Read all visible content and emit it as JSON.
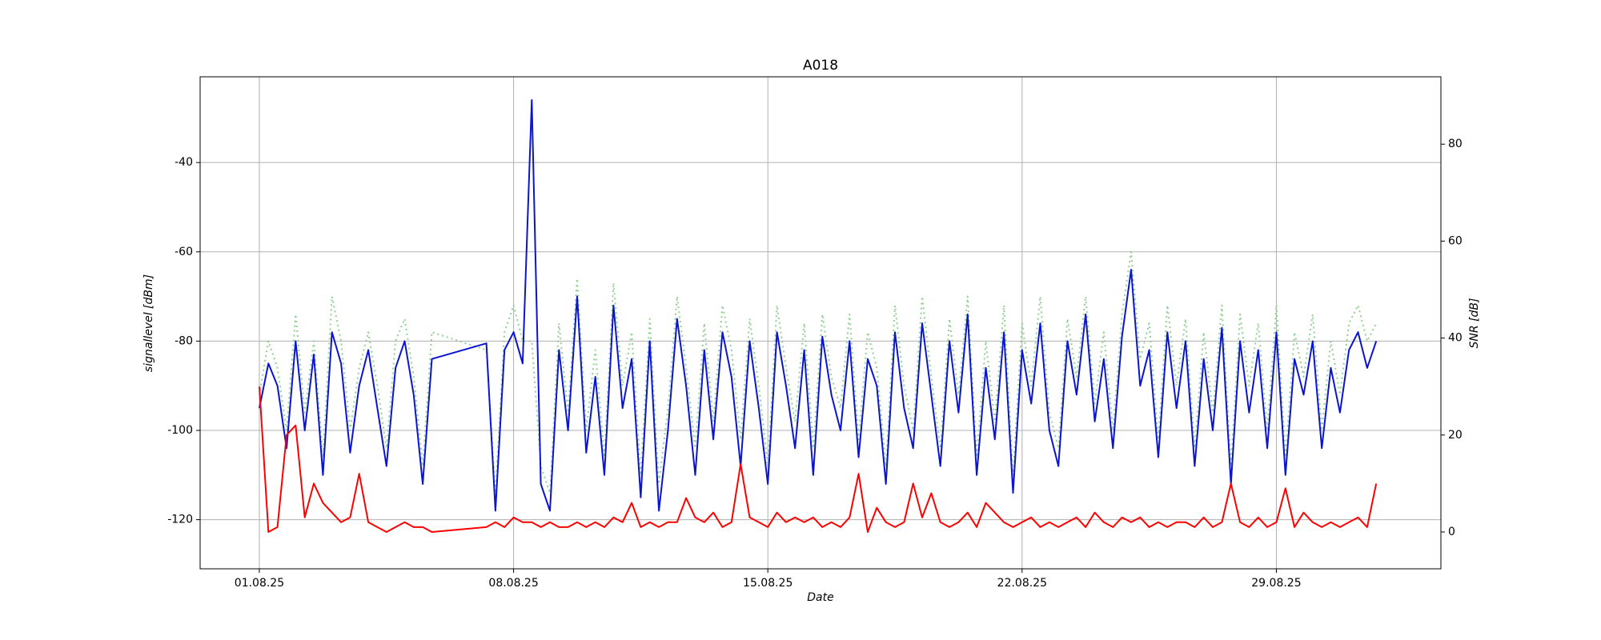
{
  "chart_data": {
    "type": "line",
    "title": "A018",
    "x_label": "Date",
    "y_label": "signallevel [dBm]",
    "y2_label": "SNR [dB]",
    "x": [
      0,
      0.25,
      0.5,
      0.75,
      1,
      1.25,
      1.5,
      1.75,
      2,
      2.25,
      2.5,
      2.75,
      3,
      3.25,
      3.5,
      3.75,
      4,
      4.25,
      4.5,
      4.75,
      6.25,
      6.5,
      6.75,
      7,
      7.25,
      7.5,
      7.75,
      8,
      8.25,
      8.5,
      8.75,
      9,
      9.25,
      9.5,
      9.75,
      10,
      10.25,
      10.5,
      10.75,
      11,
      11.25,
      11.5,
      11.75,
      12,
      12.25,
      12.5,
      12.75,
      13,
      13.25,
      13.5,
      13.75,
      14,
      14.25,
      14.5,
      14.75,
      15,
      15.25,
      15.5,
      15.75,
      16,
      16.25,
      16.5,
      16.75,
      17,
      17.25,
      17.5,
      17.75,
      18,
      18.25,
      18.5,
      18.75,
      19,
      19.25,
      19.5,
      19.75,
      20,
      20.25,
      20.5,
      20.75,
      21,
      21.25,
      21.5,
      21.75,
      22,
      22.25,
      22.5,
      22.75,
      23,
      23.25,
      23.5,
      23.75,
      24,
      24.25,
      24.5,
      24.75,
      25,
      25.25,
      25.5,
      25.75,
      26,
      26.25,
      26.5,
      26.75,
      27,
      27.25,
      27.5,
      27.75,
      28,
      28.25,
      28.5,
      28.75,
      29,
      29.25,
      29.5,
      29.75,
      30,
      30.25,
      30.5,
      30.75
    ],
    "series": [
      {
        "color": "#8fd18f",
        "linestyle": "dotted",
        "axis": "y",
        "values": [
          -92,
          -80,
          -86,
          -100,
          -74,
          -96,
          -80,
          -106,
          -70,
          -80,
          -100,
          -86,
          -78,
          -90,
          -104,
          -80,
          -75,
          -88,
          -108,
          -78,
          -82,
          -114,
          -78,
          -72,
          -80,
          -80,
          -108,
          -114,
          -76,
          -96,
          -66,
          -100,
          -82,
          -106,
          -67,
          -90,
          -78,
          -110,
          -75,
          -112,
          -95,
          -70,
          -86,
          -104,
          -76,
          -98,
          -72,
          -82,
          -102,
          -75,
          -90,
          -108,
          -72,
          -86,
          -98,
          -76,
          -104,
          -74,
          -88,
          -95,
          -74,
          -102,
          -78,
          -86,
          -108,
          -72,
          -90,
          -100,
          -70,
          -88,
          -104,
          -75,
          -92,
          -70,
          -106,
          -80,
          -98,
          -72,
          -110,
          -76,
          -90,
          -70,
          -96,
          -104,
          -75,
          -88,
          -70,
          -94,
          -78,
          -100,
          -74,
          -60,
          -84,
          -76,
          -102,
          -72,
          -90,
          -75,
          -104,
          -78,
          -96,
          -72,
          -108,
          -74,
          -90,
          -76,
          -100,
          -72,
          -106,
          -78,
          -88,
          -74,
          -100,
          -80,
          -92,
          -76,
          -72,
          -80,
          -76
        ]
      },
      {
        "color": "#0a14d2",
        "linestyle": "solid",
        "axis": "y",
        "values": [
          -95,
          -85,
          -90,
          -104,
          -80,
          -100,
          -83,
          -110,
          -78,
          -85,
          -105,
          -90,
          -82,
          -95,
          -108,
          -86,
          -80,
          -92,
          -112,
          -84,
          -80.5,
          -118,
          -82,
          -78,
          -85,
          -26,
          -112,
          -118,
          -82,
          -100,
          -70,
          -105,
          -88,
          -110,
          -72,
          -95,
          -84,
          -115,
          -80,
          -118,
          -100,
          -75,
          -90,
          -110,
          -82,
          -102,
          -78,
          -88,
          -108,
          -80,
          -95,
          -112,
          -78,
          -90,
          -104,
          -82,
          -110,
          -79,
          -92,
          -100,
          -80,
          -106,
          -84,
          -90,
          -112,
          -78,
          -95,
          -104,
          -76,
          -92,
          -108,
          -80,
          -96,
          -74,
          -110,
          -86,
          -102,
          -78,
          -114,
          -82,
          -94,
          -76,
          -100,
          -108,
          -80,
          -92,
          -74,
          -98,
          -84,
          -104,
          -79,
          -64,
          -90,
          -82,
          -106,
          -78,
          -95,
          -80,
          -108,
          -84,
          -100,
          -77,
          -112,
          -80,
          -96,
          -82,
          -104,
          -78,
          -110,
          -84,
          -92,
          -80,
          -104,
          -86,
          -96,
          -82,
          -78,
          -86,
          -80
        ]
      },
      {
        "color": "#ff0000",
        "linestyle": "solid",
        "axis": "y2",
        "values": [
          30,
          0,
          1,
          20,
          22,
          3,
          10,
          6,
          4,
          2,
          3,
          12,
          2,
          1,
          0,
          1,
          2,
          1,
          1,
          0,
          1,
          2,
          1,
          3,
          2,
          2,
          1,
          2,
          1,
          1,
          2,
          1,
          2,
          1,
          3,
          2,
          6,
          1,
          2,
          1,
          2,
          2,
          7,
          3,
          2,
          4,
          1,
          2,
          14,
          3,
          2,
          1,
          4,
          2,
          3,
          2,
          3,
          1,
          2,
          1,
          3,
          12,
          0,
          5,
          2,
          1,
          2,
          10,
          3,
          8,
          2,
          1,
          2,
          4,
          1,
          6,
          4,
          2,
          1,
          2,
          3,
          1,
          2,
          1,
          2,
          3,
          1,
          4,
          2,
          1,
          3,
          2,
          3,
          1,
          2,
          1,
          2,
          2,
          1,
          3,
          1,
          2,
          10,
          2,
          1,
          3,
          1,
          2,
          9,
          1,
          4,
          2,
          1,
          2,
          1,
          2,
          3,
          1,
          10
        ]
      }
    ],
    "xlim": [
      -1.63,
      32.53
    ],
    "xticks": [
      {
        "value": 0,
        "label": "01.08.25"
      },
      {
        "value": 7,
        "label": "08.08.25"
      },
      {
        "value": 14,
        "label": "15.08.25"
      },
      {
        "value": 21,
        "label": "22.08.25"
      },
      {
        "value": 28,
        "label": "29.08.25"
      }
    ],
    "ylim": [
      -131,
      -20.8
    ],
    "yticks": [
      -120,
      -100,
      -80,
      -60,
      -40
    ],
    "y2lim": [
      -7.6,
      93.9
    ],
    "y2ticks": [
      0,
      20,
      40,
      60,
      80
    ],
    "grid": true
  }
}
